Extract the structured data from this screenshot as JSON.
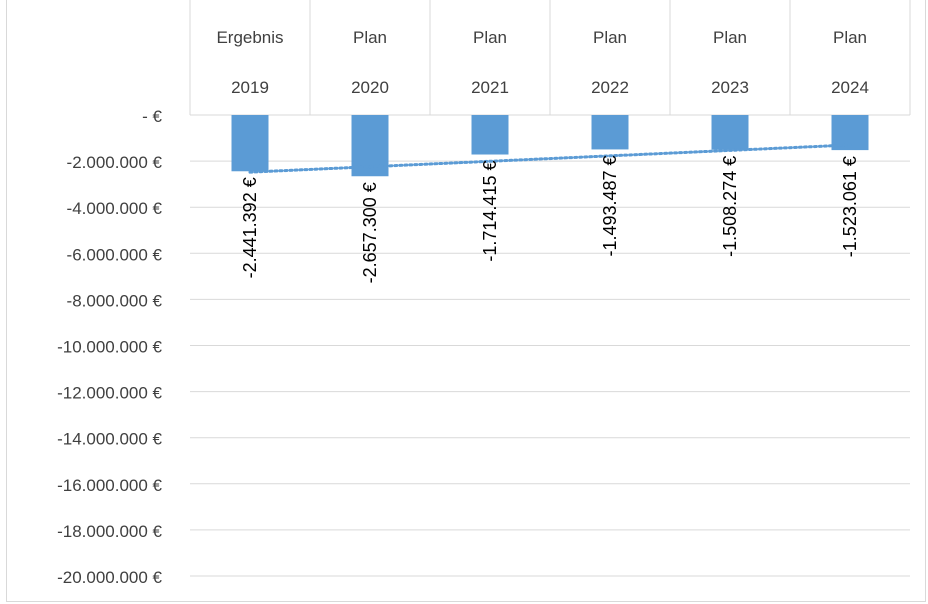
{
  "chart_data": {
    "type": "bar",
    "title": "",
    "categories": [
      {
        "label": "Ergebnis",
        "year": "2019"
      },
      {
        "label": "Plan",
        "year": "2020"
      },
      {
        "label": "Plan",
        "year": "2021"
      },
      {
        "label": "Plan",
        "year": "2022"
      },
      {
        "label": "Plan",
        "year": "2023"
      },
      {
        "label": "Plan",
        "year": "2024"
      }
    ],
    "values": [
      -2441392,
      -2657300,
      -1714415,
      -1493487,
      -1508274,
      -1523061
    ],
    "value_labels": [
      "-2.441.392 €",
      "-2.657.300 €",
      "-1.714.415 €",
      "-1.493.487 €",
      "-1.508.274 €",
      "-1.523.061 €"
    ],
    "ylim": [
      -20000000,
      0
    ],
    "y_ticks": [
      0,
      -2000000,
      -4000000,
      -6000000,
      -8000000,
      -10000000,
      -12000000,
      -14000000,
      -16000000,
      -18000000,
      -20000000
    ],
    "y_tick_labels": [
      "-   €",
      "-2.000.000 €",
      "-4.000.000 €",
      "-6.000.000 €",
      "-8.000.000 €",
      "-10.000.000 €",
      "-12.000.000 €",
      "-14.000.000 €",
      "-16.000.000 €",
      "-18.000.000 €",
      "-20.000.000 €"
    ],
    "trendline": {
      "style": "dotted",
      "type": "linear"
    },
    "grid": true,
    "colors": {
      "bar": "#5b9bd5",
      "trend": "#5b9bd5",
      "grid": "#d9d9d9",
      "text": "#404040"
    }
  }
}
